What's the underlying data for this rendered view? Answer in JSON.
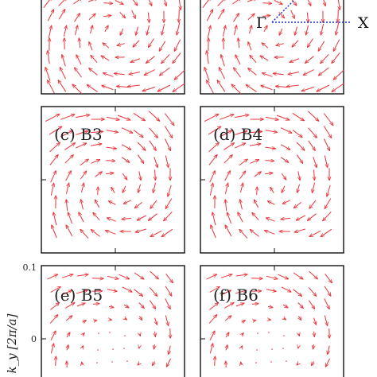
{
  "figure": {
    "panels": [
      {
        "id": "a",
        "label": "",
        "pattern": "vortex",
        "strength": 1.0
      },
      {
        "id": "b",
        "label": "",
        "pattern": "vortex",
        "strength": 1.0
      },
      {
        "id": "c",
        "label": "(c) B3",
        "pattern": "vortex",
        "strength": 1.0
      },
      {
        "id": "d",
        "label": "(d) B4",
        "pattern": "vortex",
        "strength": 1.0
      },
      {
        "id": "e",
        "label": "(e) B5",
        "pattern": "vortex-weak-center",
        "strength": 0.8
      },
      {
        "id": "f",
        "label": "(f) B6",
        "pattern": "vortex-weak-center",
        "strength": 0.8
      }
    ],
    "path_labels": {
      "gamma": "Γ",
      "x": "X"
    },
    "y_axis": {
      "label": "k_y [2π/a]",
      "ticks": [
        "0.1",
        "0"
      ]
    },
    "colors": {
      "arrow": "#e8343a",
      "path": "#1a2bd6",
      "frame": "#111111"
    }
  }
}
